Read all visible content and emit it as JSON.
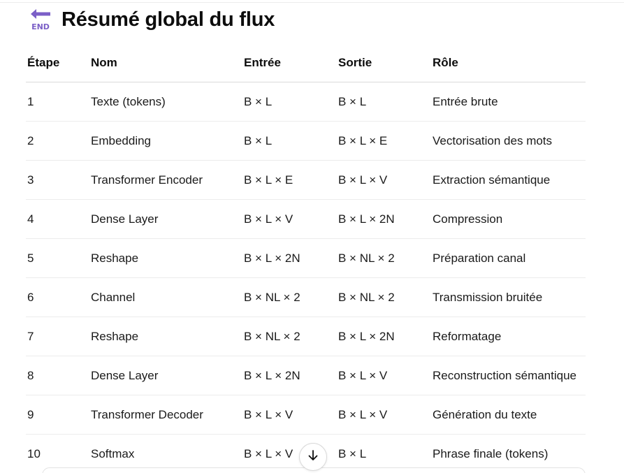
{
  "heading": {
    "icon": "end-arrow-icon",
    "icon_text": "END",
    "title": "Résumé global du flux"
  },
  "table": {
    "columns": [
      "Étape",
      "Nom",
      "Entrée",
      "Sortie",
      "Rôle"
    ],
    "rows": [
      [
        "1",
        "Texte (tokens)",
        "B × L",
        "B × L",
        "Entrée brute"
      ],
      [
        "2",
        "Embedding",
        "B × L",
        "B × L × E",
        "Vectorisation des mots"
      ],
      [
        "3",
        "Transformer Encoder",
        "B × L × E",
        "B × L × V",
        "Extraction sémantique"
      ],
      [
        "4",
        "Dense Layer",
        "B × L × V",
        "B × L × 2N",
        "Compression"
      ],
      [
        "5",
        "Reshape",
        "B × L × 2N",
        "B × NL × 2",
        "Préparation canal"
      ],
      [
        "6",
        "Channel",
        "B × NL × 2",
        "B × NL × 2",
        "Transmission bruitée"
      ],
      [
        "7",
        "Reshape",
        "B × NL × 2",
        "B × L × 2N",
        "Reformatage"
      ],
      [
        "8",
        "Dense Layer",
        "B × L × 2N",
        "B × L × V",
        "Reconstruction sémantique"
      ],
      [
        "9",
        "Transformer Decoder",
        "B × L × V",
        "B × L × V",
        "Génération du texte"
      ],
      [
        "10",
        "Softmax",
        "B × L × V",
        "B × L",
        "Phrase finale (tokens)"
      ]
    ]
  },
  "scroll_button": {
    "icon": "arrow-down-icon"
  },
  "colors": {
    "icon_purple": "#7b5fc7",
    "text": "#0d0d0d",
    "header_rule": "#d9d9d9",
    "row_rule": "#ececec"
  }
}
